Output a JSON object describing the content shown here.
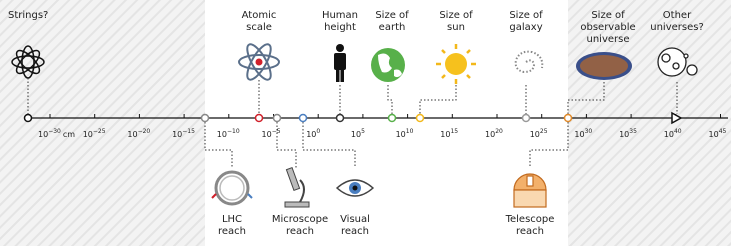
{
  "axis": {
    "unit": "cm",
    "ticks": [
      {
        "base": "10",
        "exponent": "−30"
      },
      {
        "base": "10",
        "exponent": "−25"
      },
      {
        "base": "10",
        "exponent": "−20"
      },
      {
        "base": "10",
        "exponent": "−15"
      },
      {
        "base": "10",
        "exponent": "−10"
      },
      {
        "base": "10",
        "exponent": "−5"
      },
      {
        "base": "10",
        "exponent": "0"
      },
      {
        "base": "10",
        "exponent": "5"
      },
      {
        "base": "10",
        "exponent": "10"
      },
      {
        "base": "10",
        "exponent": "15"
      },
      {
        "base": "10",
        "exponent": "20"
      },
      {
        "base": "10",
        "exponent": "25"
      },
      {
        "base": "10",
        "exponent": "30"
      },
      {
        "base": "10",
        "exponent": "35"
      },
      {
        "base": "10",
        "exponent": "40"
      },
      {
        "base": "10",
        "exponent": "45"
      }
    ]
  },
  "top_items": [
    {
      "lines": [
        "Strings?"
      ]
    },
    {
      "lines": [
        "Atomic",
        "scale"
      ]
    },
    {
      "lines": [
        "Human",
        "height"
      ]
    },
    {
      "lines": [
        "Size of",
        "earth"
      ]
    },
    {
      "lines": [
        "Size of",
        "sun"
      ]
    },
    {
      "lines": [
        "Size of",
        "galaxy"
      ]
    },
    {
      "lines": [
        "Size of",
        "observable",
        "universe"
      ]
    },
    {
      "lines": [
        "Other",
        "universes?"
      ]
    }
  ],
  "bottom_items": [
    {
      "lines": [
        "LHC",
        "reach"
      ]
    },
    {
      "lines": [
        "Microscope",
        "reach"
      ]
    },
    {
      "lines": [
        "Visual",
        "reach"
      ]
    },
    {
      "lines": [
        "Telescope",
        "reach"
      ]
    }
  ]
}
